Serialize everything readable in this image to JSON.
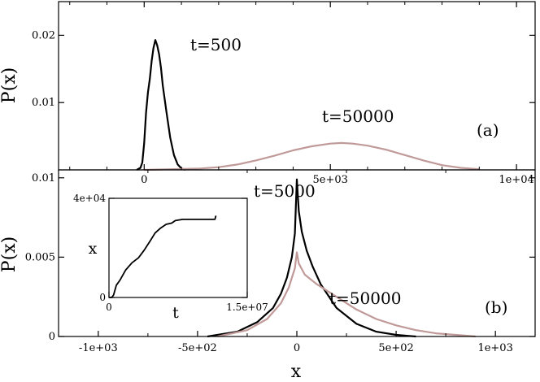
{
  "chart_data": [
    {
      "panel_label": "(a)",
      "type": "line",
      "xlim": [
        -2300,
        10500
      ],
      "ylim": [
        0,
        0.025
      ],
      "yticks": [
        0.01,
        0.02
      ],
      "ytick_labels": [
        "0.01",
        "0.02"
      ],
      "xticks": [
        0,
        5000,
        10000
      ],
      "xtick_labels": [
        "0",
        "5e+03",
        "1e+04"
      ],
      "ylabel": "P(x)",
      "series": [
        {
          "name": "t=500",
          "color": "#000000",
          "x": [
            -200,
            -100,
            -50,
            0,
            50,
            100,
            150,
            200,
            250,
            300,
            350,
            400,
            450,
            500,
            600,
            700,
            800,
            900,
            1000,
            1100
          ],
          "y": [
            0,
            0.0003,
            0.0011,
            0.004,
            0.0085,
            0.0115,
            0.0135,
            0.0162,
            0.0181,
            0.0193,
            0.0185,
            0.0172,
            0.0152,
            0.0125,
            0.0085,
            0.0048,
            0.0022,
            0.0008,
            0.0002,
            0
          ]
        },
        {
          "name": "t=50000",
          "color": "#c09a98",
          "x": [
            0,
            1500,
            2000,
            2500,
            3000,
            3500,
            4000,
            4500,
            5000,
            5300,
            5600,
            6000,
            6500,
            7000,
            7500,
            8000,
            8500,
            9000
          ],
          "y": [
            0,
            0.0002,
            0.0004,
            0.0008,
            0.0014,
            0.0021,
            0.0029,
            0.0035,
            0.0039,
            0.004,
            0.0039,
            0.0036,
            0.003,
            0.0022,
            0.0014,
            0.0007,
            0.0003,
            0.0001
          ]
        }
      ],
      "annotations": [
        "t=500",
        "t=50000"
      ]
    },
    {
      "panel_label": "(b)",
      "type": "line",
      "xlim": [
        -1200,
        1200
      ],
      "ylim": [
        0,
        0.0105
      ],
      "yticks": [
        0,
        0.005,
        0.01
      ],
      "ytick_labels": [
        "0",
        "0.005",
        "0.01"
      ],
      "xticks": [
        -1000,
        -500,
        0,
        500,
        1000
      ],
      "xtick_labels": [
        "-1e+03",
        "-5e+02",
        "0",
        "5e+02",
        "1e+03"
      ],
      "xlabel": "x",
      "ylabel": "P(x)",
      "series": [
        {
          "name": "t=5000",
          "color": "#000000",
          "x": [
            -450,
            -300,
            -200,
            -120,
            -80,
            -50,
            -25,
            -10,
            0,
            10,
            25,
            50,
            80,
            120,
            200,
            300,
            400,
            500,
            600
          ],
          "y": [
            0,
            0.0003,
            0.0009,
            0.0018,
            0.0027,
            0.0037,
            0.005,
            0.0065,
            0.0099,
            0.0079,
            0.0066,
            0.0054,
            0.0044,
            0.0033,
            0.0018,
            0.0008,
            0.0003,
            0.0001,
            0
          ]
        },
        {
          "name": "t=50000",
          "color": "#c09a98",
          "x": [
            -400,
            -250,
            -150,
            -80,
            -40,
            -10,
            0,
            10,
            40,
            100,
            200,
            300,
            400,
            500,
            600,
            700,
            800,
            900
          ],
          "y": [
            0,
            0.0004,
            0.0011,
            0.0021,
            0.0031,
            0.0043,
            0.0053,
            0.0046,
            0.0039,
            0.0033,
            0.0025,
            0.0017,
            0.0011,
            0.0007,
            0.0004,
            0.0002,
            0.0001,
            0
          ]
        }
      ],
      "annotations": [
        "t=5000",
        "t=50000"
      ]
    },
    {
      "panel_label": "inset",
      "type": "line",
      "xlim": [
        0,
        15000000
      ],
      "ylim": [
        0,
        40000
      ],
      "xticks": [
        0,
        15000000
      ],
      "xtick_labels": [
        "0",
        "1.5e+07"
      ],
      "yticks": [
        0,
        40000
      ],
      "ytick_labels": [
        "0",
        "4e+04"
      ],
      "xlabel": "t",
      "ylabel": "x",
      "series": [
        {
          "color": "#000000",
          "x": [
            0,
            300000,
            500000,
            800000,
            1200000,
            1800000,
            2500000,
            3200000,
            3800000,
            4500000,
            5000000,
            5600000,
            6200000,
            6800000,
            7200000,
            8000000,
            9000000,
            10000000,
            11000000,
            11500000,
            11600000
          ],
          "y": [
            0,
            0,
            1000,
            5000,
            7000,
            11000,
            14000,
            16000,
            19000,
            23000,
            26000,
            28000,
            29500,
            30000,
            31000,
            31500,
            31500,
            31500,
            31500,
            31500,
            33000
          ]
        }
      ]
    }
  ]
}
